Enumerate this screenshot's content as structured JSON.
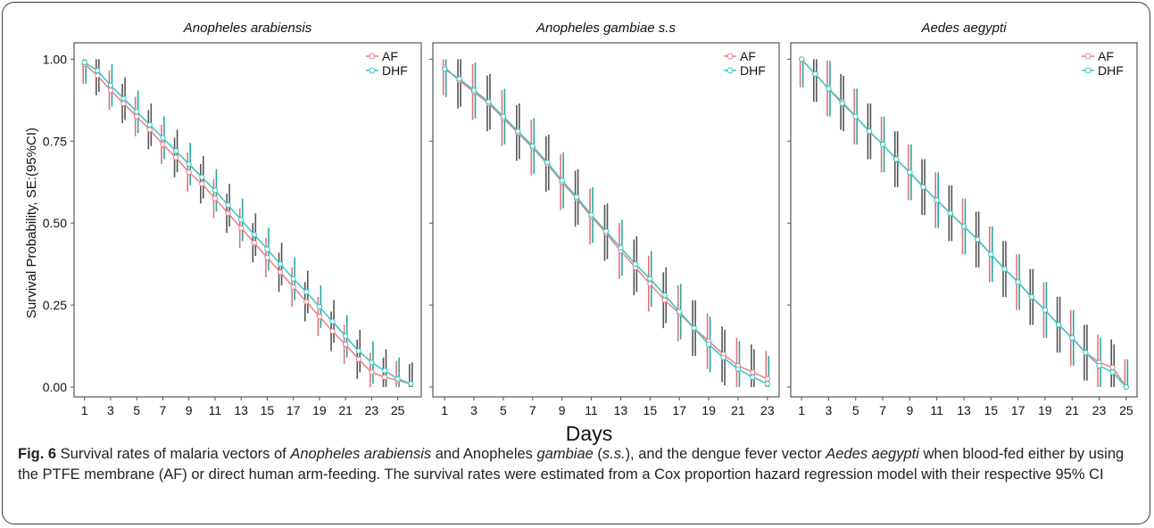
{
  "figure": {
    "xlabel": "Days",
    "ylabel": "Survival Probability, SE:(95%CI)",
    "legend": {
      "entries": [
        "AF",
        "DHF"
      ],
      "position": "top-right"
    },
    "colors": {
      "AF": "#e8858a",
      "DHF": "#3ec8c4",
      "errorbar_AF": "#d9757a",
      "errorbar_DHF": "#29a6a2",
      "errorbar_dark": "#555555"
    }
  },
  "caption": {
    "label": "Fig. 6",
    "t1": " Survival rates of malaria vectors of ",
    "s1": "Anopheles arabiensis",
    "t2": " and Anopheles ",
    "s2": "gambiae",
    "t3": " (",
    "s3": "s.s.",
    "t4": "), and the dengue fever vector ",
    "s4": "Aedes aegypti",
    "t5": " when blood-fed either by using the PTFE membrane (AF) or direct human arm-feeding. The survival rates were estimated from a Cox proportion hazard regression model with their respective 95% CI"
  },
  "chart_data": [
    {
      "type": "line",
      "title": "Anopheles arabiensis",
      "x": [
        1,
        2,
        3,
        4,
        5,
        6,
        7,
        8,
        9,
        10,
        11,
        12,
        13,
        14,
        15,
        16,
        17,
        18,
        19,
        20,
        21,
        22,
        23,
        24,
        25,
        26
      ],
      "xticks": [
        1,
        3,
        5,
        7,
        9,
        11,
        13,
        15,
        17,
        19,
        21,
        23,
        25
      ],
      "xlim": [
        0.2,
        26.8
      ],
      "ylim": [
        -0.03,
        1.05
      ],
      "yticks": [
        0.0,
        0.25,
        0.5,
        0.75,
        1.0
      ],
      "ytick_labels": [
        "0.00",
        "0.25",
        "0.50",
        "0.75",
        "1.00"
      ],
      "grid": false,
      "series": [
        {
          "name": "AF",
          "values": [
            0.985,
            0.95,
            0.905,
            0.865,
            0.825,
            0.785,
            0.74,
            0.7,
            0.655,
            0.62,
            0.575,
            0.53,
            0.485,
            0.44,
            0.395,
            0.35,
            0.305,
            0.26,
            0.215,
            0.17,
            0.13,
            0.085,
            0.045,
            0.03,
            0.02,
            0.01
          ],
          "err": 0.06
        },
        {
          "name": "DHF",
          "values": [
            0.99,
            0.965,
            0.92,
            0.88,
            0.84,
            0.8,
            0.76,
            0.72,
            0.68,
            0.64,
            0.6,
            0.555,
            0.51,
            0.465,
            0.42,
            0.375,
            0.33,
            0.29,
            0.245,
            0.2,
            0.155,
            0.11,
            0.075,
            0.05,
            0.025,
            0.01
          ],
          "err": 0.065
        }
      ]
    },
    {
      "type": "line",
      "title": "Anopheles gambiae s.s",
      "x": [
        1,
        2,
        3,
        4,
        5,
        6,
        7,
        8,
        9,
        10,
        11,
        12,
        13,
        14,
        15,
        16,
        17,
        18,
        19,
        20,
        21,
        22,
        23
      ],
      "xticks": [
        1,
        3,
        5,
        7,
        9,
        11,
        13,
        15,
        17,
        19,
        21,
        23
      ],
      "xlim": [
        0.2,
        23.8
      ],
      "ylim": [
        -0.03,
        1.05
      ],
      "yticks": [
        0.0,
        0.25,
        0.5,
        0.75,
        1.0
      ],
      "ytick_labels": [
        "",
        "",
        "",
        "",
        ""
      ],
      "grid": false,
      "series": [
        {
          "name": "AF",
          "values": [
            0.975,
            0.935,
            0.9,
            0.865,
            0.82,
            0.775,
            0.73,
            0.68,
            0.625,
            0.575,
            0.52,
            0.47,
            0.415,
            0.365,
            0.315,
            0.265,
            0.225,
            0.18,
            0.14,
            0.1,
            0.065,
            0.045,
            0.025
          ],
          "err": 0.085
        },
        {
          "name": "DHF",
          "values": [
            0.97,
            0.94,
            0.905,
            0.87,
            0.825,
            0.78,
            0.735,
            0.685,
            0.63,
            0.58,
            0.525,
            0.475,
            0.425,
            0.375,
            0.33,
            0.28,
            0.23,
            0.18,
            0.13,
            0.09,
            0.055,
            0.03,
            0.01
          ],
          "err": 0.085
        }
      ]
    },
    {
      "type": "line",
      "title": "Aedes aegypti",
      "x": [
        1,
        2,
        3,
        4,
        5,
        6,
        7,
        8,
        9,
        10,
        11,
        12,
        13,
        14,
        15,
        16,
        17,
        18,
        19,
        20,
        21,
        22,
        23,
        24,
        25
      ],
      "xticks": [
        1,
        3,
        5,
        7,
        9,
        11,
        13,
        15,
        17,
        19,
        21,
        23,
        25
      ],
      "xlim": [
        0.2,
        25.8
      ],
      "ylim": [
        -0.03,
        1.05
      ],
      "yticks": [
        0.0,
        0.25,
        0.5,
        0.75,
        1.0
      ],
      "ytick_labels": [
        "",
        "",
        "",
        "",
        ""
      ],
      "grid": false,
      "series": [
        {
          "name": "AF",
          "values": [
            1.0,
            0.955,
            0.91,
            0.87,
            0.825,
            0.78,
            0.74,
            0.695,
            0.655,
            0.61,
            0.57,
            0.53,
            0.49,
            0.45,
            0.405,
            0.36,
            0.32,
            0.275,
            0.235,
            0.19,
            0.15,
            0.105,
            0.075,
            0.06,
            0.0
          ],
          "err": 0.085
        },
        {
          "name": "DHF",
          "values": [
            1.0,
            0.955,
            0.91,
            0.865,
            0.825,
            0.78,
            0.74,
            0.695,
            0.655,
            0.61,
            0.57,
            0.53,
            0.49,
            0.45,
            0.405,
            0.36,
            0.32,
            0.275,
            0.235,
            0.19,
            0.15,
            0.105,
            0.065,
            0.045,
            0.0
          ],
          "err": 0.085
        }
      ]
    }
  ]
}
